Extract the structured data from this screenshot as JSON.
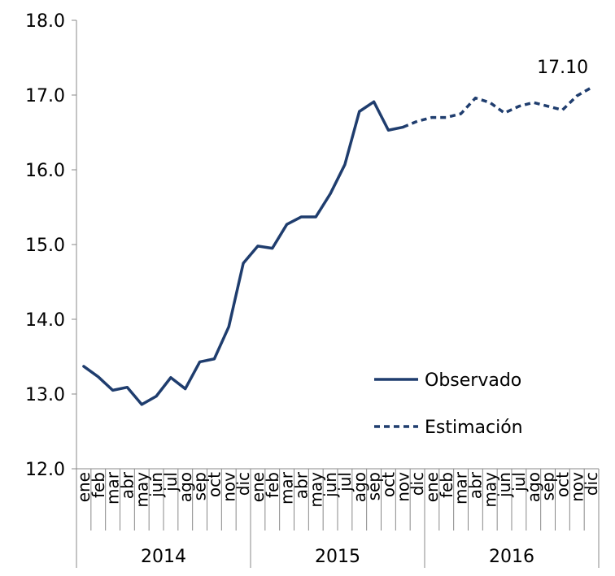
{
  "chart_data": {
    "type": "line",
    "title": "",
    "xlabel": "",
    "ylabel": "",
    "ylim": [
      12.0,
      18.0
    ],
    "y_ticks": [
      "12.0",
      "13.0",
      "14.0",
      "15.0",
      "16.0",
      "17.0",
      "18.0"
    ],
    "grid": false,
    "legend_position": "right",
    "x_month_labels": [
      "ene",
      "feb",
      "mar",
      "abr",
      "may",
      "jun",
      "jul",
      "ago",
      "sep",
      "oct",
      "nov",
      "dic"
    ],
    "years": [
      "2014",
      "2015",
      "2016"
    ],
    "series": [
      {
        "name": "Observado",
        "style": "solid",
        "color": "#1f3d6e",
        "x_start_index": 0,
        "values": [
          13.37,
          13.23,
          13.05,
          13.09,
          12.86,
          12.97,
          13.22,
          13.07,
          13.43,
          13.47,
          13.9,
          14.75,
          14.98,
          14.95,
          15.27,
          15.37,
          15.37,
          15.68,
          16.07,
          16.78,
          16.91,
          16.53,
          16.57
        ]
      },
      {
        "name": "Estimación",
        "style": "dashed",
        "color": "#1f3d6e",
        "x_start_index": 22,
        "values": [
          16.57,
          16.65,
          16.7,
          16.7,
          16.75,
          16.96,
          16.9,
          16.76,
          16.85,
          16.9,
          16.85,
          16.8,
          16.99,
          17.1
        ]
      }
    ],
    "annotations": [
      {
        "text": "17.10",
        "series": "Estimación",
        "point": "last"
      }
    ]
  }
}
